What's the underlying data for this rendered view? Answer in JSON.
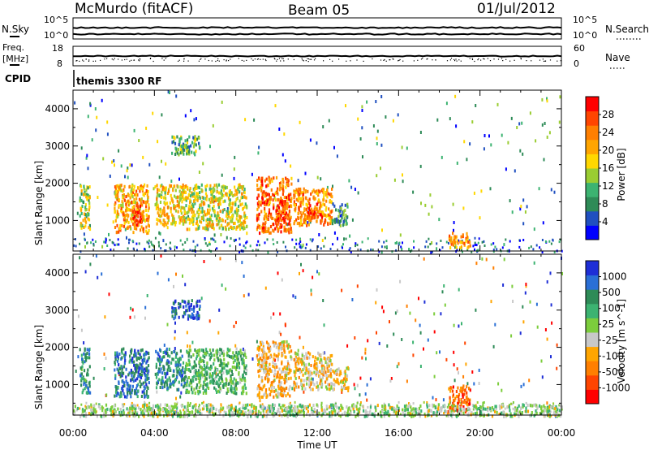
{
  "header": {
    "station": "McMurdo (fitACF)",
    "beam": "Beam 05",
    "date": "01/Jul/2012"
  },
  "aux_panels": {
    "nsky_label": "N.Sky",
    "nsky_ticks": [
      "10^5",
      "10^0"
    ],
    "nsearch_label": "N.Search",
    "nsearch_ticks": [
      "10^5",
      "10^0"
    ],
    "freq_label": "Freq.",
    "freq_unit": "[MHz]",
    "freq_ticks": [
      "18",
      "8"
    ],
    "nave_label": "Nave",
    "nave_ticks": [
      "60",
      "0"
    ],
    "cpid_label": "CPID",
    "cpid_value": "themis 3300 RF"
  },
  "colors": {
    "power_scale": [
      "#0000ff",
      "#2050c0",
      "#2e8b57",
      "#3cb371",
      "#9acd32",
      "#ffd700",
      "#ffa500",
      "#ff7f00",
      "#ff4500",
      "#ff0000"
    ],
    "velocity_scale": [
      "#1e2ed6",
      "#2a6fd6",
      "#2e8b57",
      "#3cb371",
      "#7ccd3c",
      "#c8c8c8",
      "#ffa500",
      "#ff7f00",
      "#ff4500",
      "#ff0000"
    ]
  },
  "chart_data": [
    {
      "type": "heatmap",
      "title": "",
      "xlabel": "",
      "ylabel": "Slant Range [km]",
      "x_range": [
        "00:00",
        "24:00"
      ],
      "ylim": [
        180,
        4500
      ],
      "x_tick_labels": [
        "00:00",
        "04:00",
        "08:00",
        "12:00",
        "16:00",
        "20:00",
        "00:00"
      ],
      "y_ticks": [
        1000,
        2000,
        3000,
        4000
      ],
      "colorbar": {
        "label": "Power [dB]",
        "ticks": [
          "4",
          "8",
          "12",
          "16",
          "20",
          "24",
          "28"
        ],
        "range": [
          0,
          30
        ]
      },
      "echo_regions": [
        {
          "t_start": 0.3,
          "t_end": 0.8,
          "r_min": 800,
          "r_max": 2000,
          "value": 14
        },
        {
          "t_start": 2.0,
          "t_end": 3.7,
          "r_min": 700,
          "r_max": 2000,
          "value": 20
        },
        {
          "t_start": 2.9,
          "t_end": 3.4,
          "r_min": 900,
          "r_max": 1500,
          "value": 28
        },
        {
          "t_start": 4.0,
          "t_end": 5.5,
          "r_min": 900,
          "r_max": 2000,
          "value": 18
        },
        {
          "t_start": 5.5,
          "t_end": 8.5,
          "r_min": 800,
          "r_max": 2000,
          "value": 16
        },
        {
          "t_start": 9.0,
          "t_end": 10.7,
          "r_min": 700,
          "r_max": 2200,
          "value": 24
        },
        {
          "t_start": 9.9,
          "t_end": 10.4,
          "r_min": 1000,
          "r_max": 1600,
          "value": 28
        },
        {
          "t_start": 10.8,
          "t_end": 12.7,
          "r_min": 900,
          "r_max": 1900,
          "value": 22
        },
        {
          "t_start": 11.5,
          "t_end": 12.2,
          "r_min": 1100,
          "r_max": 1500,
          "value": 28
        },
        {
          "t_start": 12.7,
          "t_end": 13.5,
          "r_min": 900,
          "r_max": 1500,
          "value": 8
        },
        {
          "t_start": 18.4,
          "t_end": 19.5,
          "r_min": 300,
          "r_max": 700,
          "value": 22
        },
        {
          "t_start": 4.8,
          "t_end": 6.2,
          "r_min": 2800,
          "r_max": 3300,
          "value": 10
        }
      ]
    },
    {
      "type": "heatmap",
      "title": "",
      "xlabel": "Time UT",
      "ylabel": "Slant Range [km]",
      "x_range": [
        "00:00",
        "24:00"
      ],
      "ylim": [
        180,
        4500
      ],
      "x_tick_labels": [
        "00:00",
        "04:00",
        "08:00",
        "12:00",
        "16:00",
        "20:00",
        "00:00"
      ],
      "y_ticks": [
        1000,
        2000,
        3000,
        4000
      ],
      "colorbar": {
        "label": "Velocity [m s^-1]",
        "ticks": [
          "1000",
          "500",
          "100",
          "25",
          "-25",
          "-100",
          "-500",
          "-1000"
        ]
      },
      "echo_regions": [
        {
          "t_start": 0.3,
          "t_end": 0.8,
          "r_min": 800,
          "r_max": 2000,
          "value": 500
        },
        {
          "t_start": 2.0,
          "t_end": 3.7,
          "r_min": 700,
          "r_max": 2000,
          "value": 700
        },
        {
          "t_start": 4.0,
          "t_end": 5.5,
          "r_min": 900,
          "r_max": 2000,
          "value": 600
        },
        {
          "t_start": 5.5,
          "t_end": 8.5,
          "r_min": 800,
          "r_max": 2000,
          "value": 300
        },
        {
          "t_start": 9.0,
          "t_end": 10.7,
          "r_min": 700,
          "r_max": 2200,
          "value": -300
        },
        {
          "t_start": 10.8,
          "t_end": 12.7,
          "r_min": 900,
          "r_max": 1900,
          "value": -200
        },
        {
          "t_start": 12.7,
          "t_end": 13.5,
          "r_min": 900,
          "r_max": 1500,
          "value": -150
        },
        {
          "t_start": 18.4,
          "t_end": 19.5,
          "r_min": 300,
          "r_max": 1000,
          "value": -700
        },
        {
          "t_start": 0.0,
          "t_end": 24.0,
          "r_min": 180,
          "r_max": 500,
          "value": 50
        },
        {
          "t_start": 4.8,
          "t_end": 6.2,
          "r_min": 2800,
          "r_max": 3300,
          "value": 800
        }
      ]
    }
  ]
}
